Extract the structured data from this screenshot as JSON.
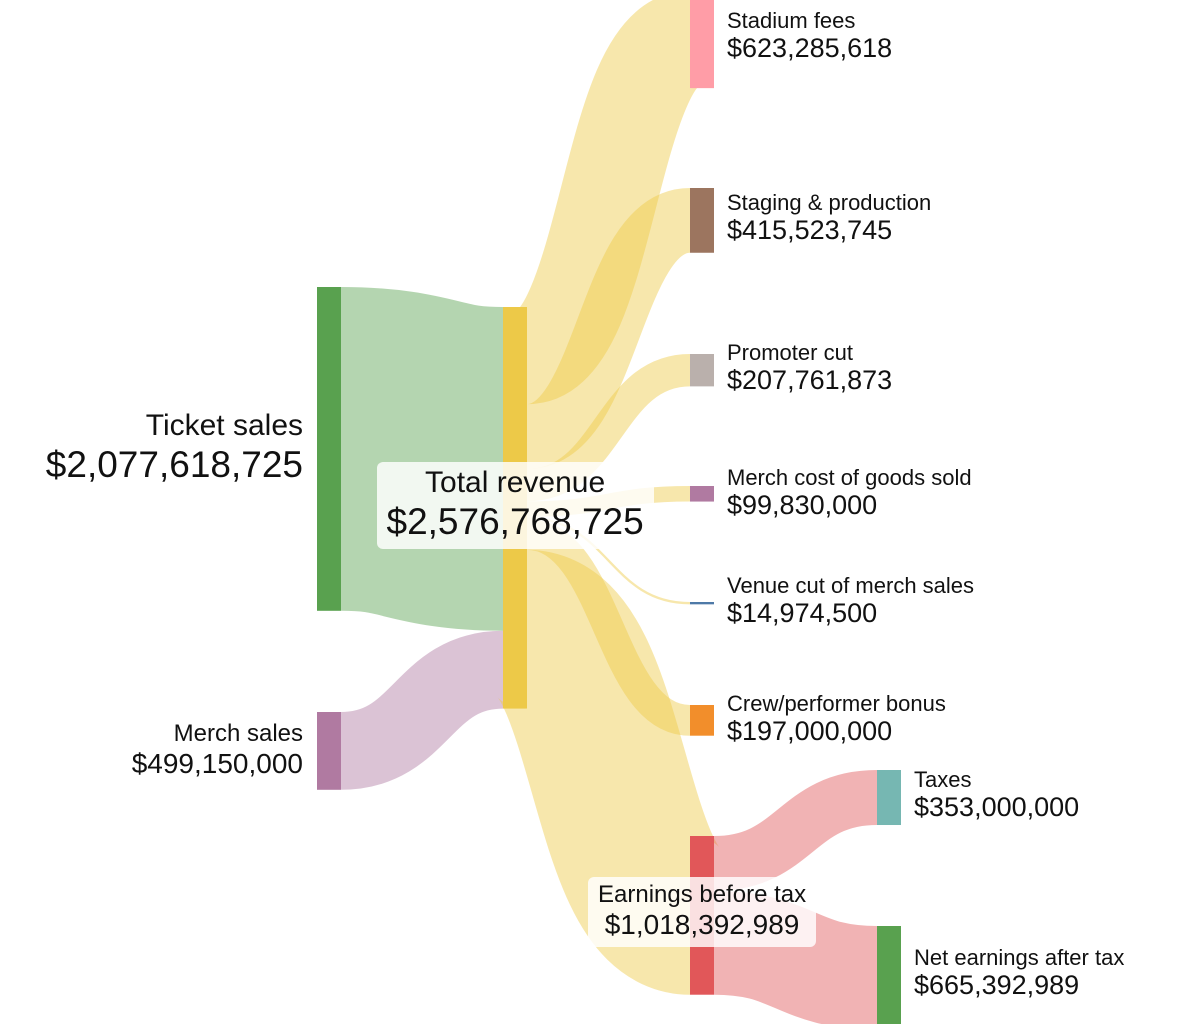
{
  "chart_data": {
    "type": "sankey",
    "nodes": [
      {
        "id": "ticket",
        "name": "Ticket sales",
        "value": 2077618725,
        "value_label": "$2,077,618,725",
        "color": "#59a14f"
      },
      {
        "id": "merch",
        "name": "Merch sales",
        "value": 499150000,
        "value_label": "$499,150,000",
        "color": "#b07aa1"
      },
      {
        "id": "total",
        "name": "Total revenue",
        "value": 2576768725,
        "value_label": "$2,576,768,725",
        "color": "#edc948"
      },
      {
        "id": "stadium",
        "name": "Stadium fees",
        "value": 623285618,
        "value_label": "$623,285,618",
        "color": "#ff9da7"
      },
      {
        "id": "staging",
        "name": "Staging & production",
        "value": 415523745,
        "value_label": "$415,523,745",
        "color": "#9c755f"
      },
      {
        "id": "promoter",
        "name": "Promoter cut",
        "value": 207761873,
        "value_label": "$207,761,873",
        "color": "#bab0ac"
      },
      {
        "id": "cogs",
        "name": "Merch cost of goods sold",
        "value": 99830000,
        "value_label": "$99,830,000",
        "color": "#b07aa1"
      },
      {
        "id": "venuecut",
        "name": "Venue cut of merch sales",
        "value": 14974500,
        "value_label": "$14,974,500",
        "color": "#4e79a7"
      },
      {
        "id": "bonus",
        "name": "Crew/performer bonus",
        "value": 197000000,
        "value_label": "$197,000,000",
        "color": "#f28e2b"
      },
      {
        "id": "ebt",
        "name": "Earnings before tax",
        "value": 1018392989,
        "value_label": "$1,018,392,989",
        "color": "#e15759"
      },
      {
        "id": "taxes",
        "name": "Taxes",
        "value": 353000000,
        "value_label": "$353,000,000",
        "color": "#76b7b2"
      },
      {
        "id": "net",
        "name": "Net earnings after tax",
        "value": 665392989,
        "value_label": "$665,392,989",
        "color": "#59a14f"
      }
    ],
    "links": [
      {
        "source": "ticket",
        "target": "total",
        "value": 2077618725
      },
      {
        "source": "merch",
        "target": "total",
        "value": 499150000
      },
      {
        "source": "total",
        "target": "stadium",
        "value": 623285618
      },
      {
        "source": "total",
        "target": "staging",
        "value": 415523745
      },
      {
        "source": "total",
        "target": "promoter",
        "value": 207761873
      },
      {
        "source": "total",
        "target": "cogs",
        "value": 99830000
      },
      {
        "source": "total",
        "target": "venuecut",
        "value": 14974500
      },
      {
        "source": "total",
        "target": "bonus",
        "value": 197000000
      },
      {
        "source": "total",
        "target": "ebt",
        "value": 1018392989
      },
      {
        "source": "ebt",
        "target": "taxes",
        "value": 353000000
      },
      {
        "source": "ebt",
        "target": "net",
        "value": 665392989
      }
    ]
  }
}
